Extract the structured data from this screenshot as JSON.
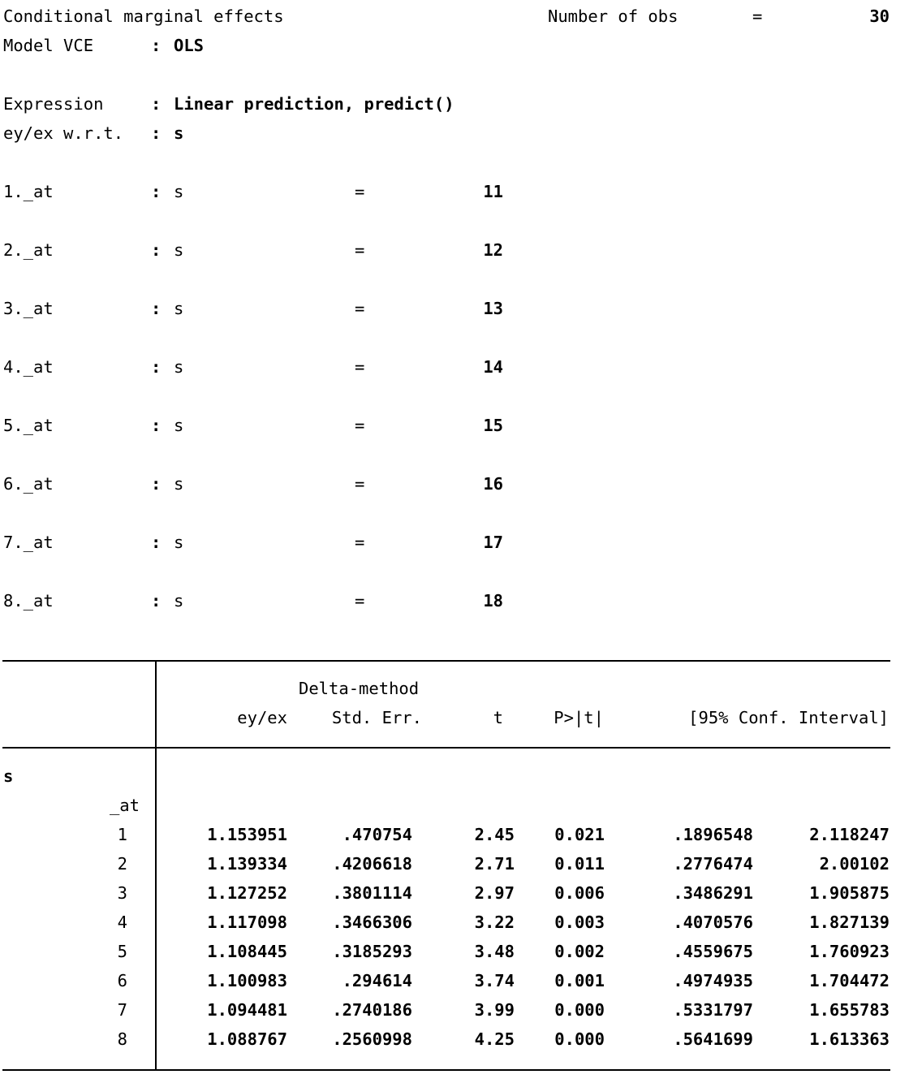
{
  "header": {
    "title": "Conditional marginal effects",
    "nobs_label": "Number of obs",
    "nobs_eq": "=",
    "nobs_value": "30",
    "vce_label": "Model VCE",
    "vce_colon": ":",
    "vce_value": "OLS",
    "expression_label": "Expression",
    "expression_colon": ":",
    "expression_value": "Linear prediction, predict()",
    "wrt_label": "ey/ex w.r.t.",
    "wrt_colon": ":",
    "wrt_value": "s"
  },
  "at_values": [
    {
      "label": "1._at",
      "colon": ":",
      "var": "s",
      "eq": "=",
      "value": "11"
    },
    {
      "label": "2._at",
      "colon": ":",
      "var": "s",
      "eq": "=",
      "value": "12"
    },
    {
      "label": "3._at",
      "colon": ":",
      "var": "s",
      "eq": "=",
      "value": "13"
    },
    {
      "label": "4._at",
      "colon": ":",
      "var": "s",
      "eq": "=",
      "value": "14"
    },
    {
      "label": "5._at",
      "colon": ":",
      "var": "s",
      "eq": "=",
      "value": "15"
    },
    {
      "label": "6._at",
      "colon": ":",
      "var": "s",
      "eq": "=",
      "value": "16"
    },
    {
      "label": "7._at",
      "colon": ":",
      "var": "s",
      "eq": "=",
      "value": "17"
    },
    {
      "label": "8._at",
      "colon": ":",
      "var": "s",
      "eq": "=",
      "value": "18"
    }
  ],
  "table": {
    "header_top": "Delta-method",
    "columns": [
      "ey/ex",
      "Std. Err.",
      "t",
      "P>|t|",
      "[95% Conf. Interval]"
    ],
    "group_label": "s",
    "subgroup_label": "_at",
    "rows": [
      {
        "at": "1",
        "eyex": "1.153951",
        "se": ".470754",
        "t": "2.45",
        "p": "0.021",
        "lo": ".1896548",
        "hi": "2.118247"
      },
      {
        "at": "2",
        "eyex": "1.139334",
        "se": ".4206618",
        "t": "2.71",
        "p": "0.011",
        "lo": ".2776474",
        "hi": "2.00102"
      },
      {
        "at": "3",
        "eyex": "1.127252",
        "se": ".3801114",
        "t": "2.97",
        "p": "0.006",
        "lo": ".3486291",
        "hi": "1.905875"
      },
      {
        "at": "4",
        "eyex": "1.117098",
        "se": ".3466306",
        "t": "3.22",
        "p": "0.003",
        "lo": ".4070576",
        "hi": "1.827139"
      },
      {
        "at": "5",
        "eyex": "1.108445",
        "se": ".3185293",
        "t": "3.48",
        "p": "0.002",
        "lo": ".4559675",
        "hi": "1.760923"
      },
      {
        "at": "6",
        "eyex": "1.100983",
        "se": ".294614",
        "t": "3.74",
        "p": "0.001",
        "lo": ".4974935",
        "hi": "1.704472"
      },
      {
        "at": "7",
        "eyex": "1.094481",
        "se": ".2740186",
        "t": "3.99",
        "p": "0.000",
        "lo": ".5331797",
        "hi": "1.655783"
      },
      {
        "at": "8",
        "eyex": "1.088767",
        "se": ".2560998",
        "t": "4.25",
        "p": "0.000",
        "lo": ".5641699",
        "hi": "1.613363"
      }
    ]
  }
}
